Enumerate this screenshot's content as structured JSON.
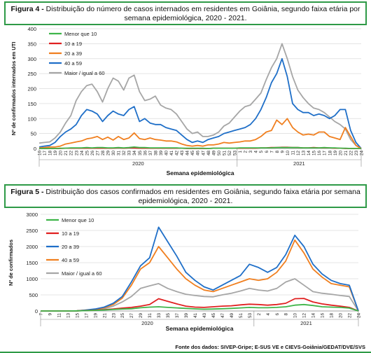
{
  "figure4": {
    "label": "Figura 4 -",
    "text": "Distribuição do número de casos internados em residentes em Goiânia, segundo faixa etária por semana epidemiológica, 2020 - 2021."
  },
  "figure5": {
    "label": "Figura 5 -",
    "text": "Distribuição dos casos confirmados em residentes em Goiânia, segundo faixa etária por semana epidemiológica, 2020 - 2021."
  },
  "source": "Fonte dos dados: SIVEP-Gripe; E-SUS VE e CIEVS-Goiânia/GEDAT/DVE/SVS",
  "colors": {
    "green": "#3fb54a",
    "red": "#e02020",
    "orange": "#f07f1f",
    "blue": "#1f6fc8",
    "gray": "#a6a6a6",
    "frame": "#2e9a47"
  },
  "chart_data": [
    {
      "type": "line",
      "xlabel": "Semana epidemiológica",
      "ylabel": "Nº de confirmados internados em UTI",
      "ylim": [
        0,
        400
      ],
      "yticks": [
        0,
        50,
        100,
        150,
        200,
        250,
        300,
        350,
        400
      ],
      "grid": true,
      "legend": "top-left",
      "years": [
        "2020",
        "2021"
      ],
      "categories": [
        "16",
        "17",
        "18",
        "19",
        "20",
        "21",
        "22",
        "23",
        "24",
        "25",
        "26",
        "27",
        "28",
        "29",
        "30",
        "31",
        "32",
        "33",
        "34",
        "35",
        "36",
        "37",
        "38",
        "39",
        "40",
        "41",
        "42",
        "43",
        "44",
        "45",
        "46",
        "47",
        "48",
        "49",
        "50",
        "51",
        "52",
        "53",
        "1",
        "2",
        "3",
        "4",
        "5",
        "6",
        "7",
        "8",
        "9",
        "10",
        "11",
        "12",
        "13",
        "14",
        "15",
        "16",
        "17",
        "18",
        "19",
        "20",
        "21",
        "22",
        "23",
        "24"
      ],
      "series": [
        {
          "name": "Menor que 10",
          "color": "#3fb54a",
          "values": [
            0,
            0,
            0,
            0,
            1,
            1,
            2,
            2,
            2,
            3,
            2,
            3,
            3,
            2,
            2,
            3,
            2,
            3,
            5,
            3,
            3,
            2,
            2,
            2,
            2,
            2,
            2,
            1,
            1,
            1,
            1,
            1,
            0,
            1,
            1,
            1,
            1,
            1,
            2,
            2,
            2,
            2,
            2,
            2,
            2,
            3,
            3,
            3,
            3,
            3,
            2,
            2,
            2,
            2,
            3,
            2,
            2,
            1,
            1,
            0,
            0,
            0
          ]
        },
        {
          "name": "10 a 19",
          "color": "#e02020",
          "values": [
            0,
            0,
            0,
            0,
            0,
            1,
            1,
            1,
            1,
            1,
            1,
            1,
            1,
            1,
            1,
            2,
            1,
            2,
            2,
            1,
            1,
            1,
            1,
            1,
            1,
            1,
            1,
            1,
            0,
            0,
            0,
            0,
            0,
            1,
            1,
            1,
            1,
            1,
            1,
            1,
            1,
            1,
            2,
            2,
            3,
            3,
            4,
            4,
            3,
            3,
            2,
            2,
            3,
            2,
            2,
            2,
            1,
            1,
            0,
            0,
            0,
            0
          ]
        },
        {
          "name": "20 a 39",
          "color": "#f07f1f",
          "values": [
            2,
            3,
            5,
            5,
            8,
            15,
            18,
            22,
            25,
            32,
            35,
            40,
            30,
            38,
            28,
            40,
            30,
            35,
            52,
            33,
            30,
            35,
            30,
            28,
            25,
            25,
            22,
            15,
            10,
            8,
            10,
            8,
            12,
            12,
            15,
            20,
            18,
            20,
            22,
            25,
            25,
            30,
            40,
            55,
            60,
            95,
            80,
            100,
            70,
            55,
            45,
            48,
            45,
            55,
            55,
            40,
            35,
            30,
            70,
            40,
            10,
            0
          ]
        },
        {
          "name": "40 a 59",
          "color": "#1f6fc8",
          "values": [
            5,
            8,
            10,
            20,
            40,
            55,
            65,
            80,
            110,
            130,
            125,
            115,
            90,
            110,
            125,
            115,
            110,
            130,
            140,
            90,
            100,
            85,
            80,
            80,
            70,
            65,
            60,
            45,
            30,
            20,
            25,
            20,
            30,
            35,
            40,
            50,
            55,
            60,
            65,
            70,
            80,
            100,
            130,
            170,
            220,
            250,
            300,
            240,
            150,
            130,
            120,
            120,
            110,
            115,
            110,
            100,
            110,
            130,
            130,
            60,
            20,
            0
          ]
        },
        {
          "name": "Maior / igual a 60",
          "color": "#a6a6a6",
          "values": [
            18,
            20,
            22,
            35,
            55,
            85,
            110,
            160,
            190,
            210,
            215,
            190,
            155,
            200,
            235,
            225,
            195,
            235,
            245,
            190,
            160,
            165,
            175,
            145,
            135,
            130,
            115,
            90,
            65,
            50,
            55,
            40,
            40,
            45,
            55,
            75,
            85,
            105,
            125,
            140,
            145,
            165,
            185,
            230,
            270,
            300,
            350,
            300,
            240,
            195,
            170,
            150,
            135,
            130,
            120,
            105,
            90,
            80,
            65,
            30,
            10,
            0
          ]
        }
      ]
    },
    {
      "type": "line",
      "xlabel": "Semana epidemiológica",
      "ylabel": "Nº de confirmados",
      "ylim": [
        0,
        3000
      ],
      "yticks": [
        0,
        500,
        1000,
        1500,
        2000,
        2500,
        3000
      ],
      "grid": true,
      "legend": "top-left",
      "years": [
        "2020",
        "2021"
      ],
      "categories": [
        "7",
        "9",
        "11",
        "13",
        "15",
        "17",
        "19",
        "21",
        "23",
        "25",
        "27",
        "29",
        "31",
        "33",
        "35",
        "37",
        "39",
        "41",
        "43",
        "45",
        "47",
        "49",
        "51",
        "53",
        "2",
        "4",
        "6",
        "8",
        "10",
        "12",
        "14",
        "16",
        "18",
        "20",
        "22",
        "24"
      ],
      "series": [
        {
          "name": "Menor que 10",
          "color": "#3fb54a",
          "values": [
            0,
            0,
            0,
            0,
            5,
            10,
            20,
            30,
            45,
            60,
            70,
            100,
            120,
            130,
            110,
            95,
            80,
            65,
            55,
            60,
            70,
            80,
            95,
            110,
            100,
            100,
            110,
            130,
            180,
            200,
            170,
            130,
            120,
            110,
            90,
            0
          ]
        },
        {
          "name": "10 a 19",
          "color": "#e02020",
          "values": [
            0,
            0,
            0,
            0,
            5,
            15,
            25,
            40,
            60,
            90,
            110,
            150,
            200,
            380,
            300,
            220,
            150,
            120,
            110,
            130,
            150,
            160,
            190,
            210,
            200,
            180,
            200,
            240,
            380,
            390,
            280,
            220,
            180,
            150,
            110,
            0
          ]
        },
        {
          "name": "20 a 39",
          "color": "#1f6fc8",
          "values": [
            0,
            0,
            0,
            0,
            5,
            30,
            60,
            120,
            240,
            450,
            900,
            1400,
            1650,
            2600,
            2150,
            1700,
            1200,
            950,
            750,
            650,
            800,
            950,
            1100,
            1450,
            1350,
            1200,
            1350,
            1750,
            2350,
            2000,
            1450,
            1150,
            950,
            850,
            800,
            0
          ]
        },
        {
          "name": "40 a 59",
          "color": "#f07f1f",
          "values": [
            0,
            0,
            0,
            0,
            4,
            25,
            50,
            100,
            200,
            400,
            800,
            1300,
            1500,
            2000,
            1650,
            1300,
            1000,
            800,
            650,
            600,
            700,
            800,
            900,
            1000,
            950,
            1000,
            1200,
            1550,
            2200,
            1800,
            1300,
            1050,
            850,
            800,
            750,
            0
          ]
        },
        {
          "name": "Maior / igual a 60",
          "color": "#a6a6a6",
          "values": [
            0,
            0,
            0,
            0,
            3,
            15,
            30,
            70,
            150,
            280,
            450,
            700,
            780,
            850,
            700,
            600,
            520,
            480,
            450,
            440,
            500,
            550,
            620,
            700,
            650,
            620,
            700,
            900,
            1000,
            800,
            600,
            550,
            520,
            480,
            450,
            0
          ]
        }
      ]
    }
  ]
}
